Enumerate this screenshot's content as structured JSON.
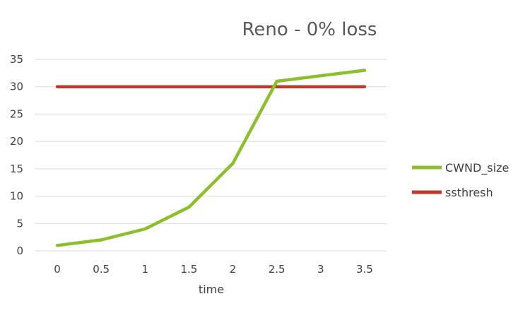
{
  "chart_data": {
    "type": "line",
    "title": "Reno - 0% loss",
    "xlabel": "time",
    "ylabel": "",
    "x": [
      "0",
      "0.5",
      "1",
      "1.5",
      "2",
      "2.5",
      "3",
      "3.5"
    ],
    "ylim": [
      0,
      35
    ],
    "yticks": [
      "0",
      "5",
      "10",
      "15",
      "20",
      "25",
      "30",
      "35"
    ],
    "grid": "horizontal",
    "legend_position": "right",
    "series": [
      {
        "name": "CWND_size",
        "color": "#8CC02A",
        "values": [
          1,
          2,
          4,
          8,
          16,
          31,
          32,
          33
        ]
      },
      {
        "name": "ssthresh",
        "color": "#C0392B",
        "values": [
          30,
          30,
          30,
          30,
          30,
          30,
          30,
          30
        ]
      }
    ]
  }
}
